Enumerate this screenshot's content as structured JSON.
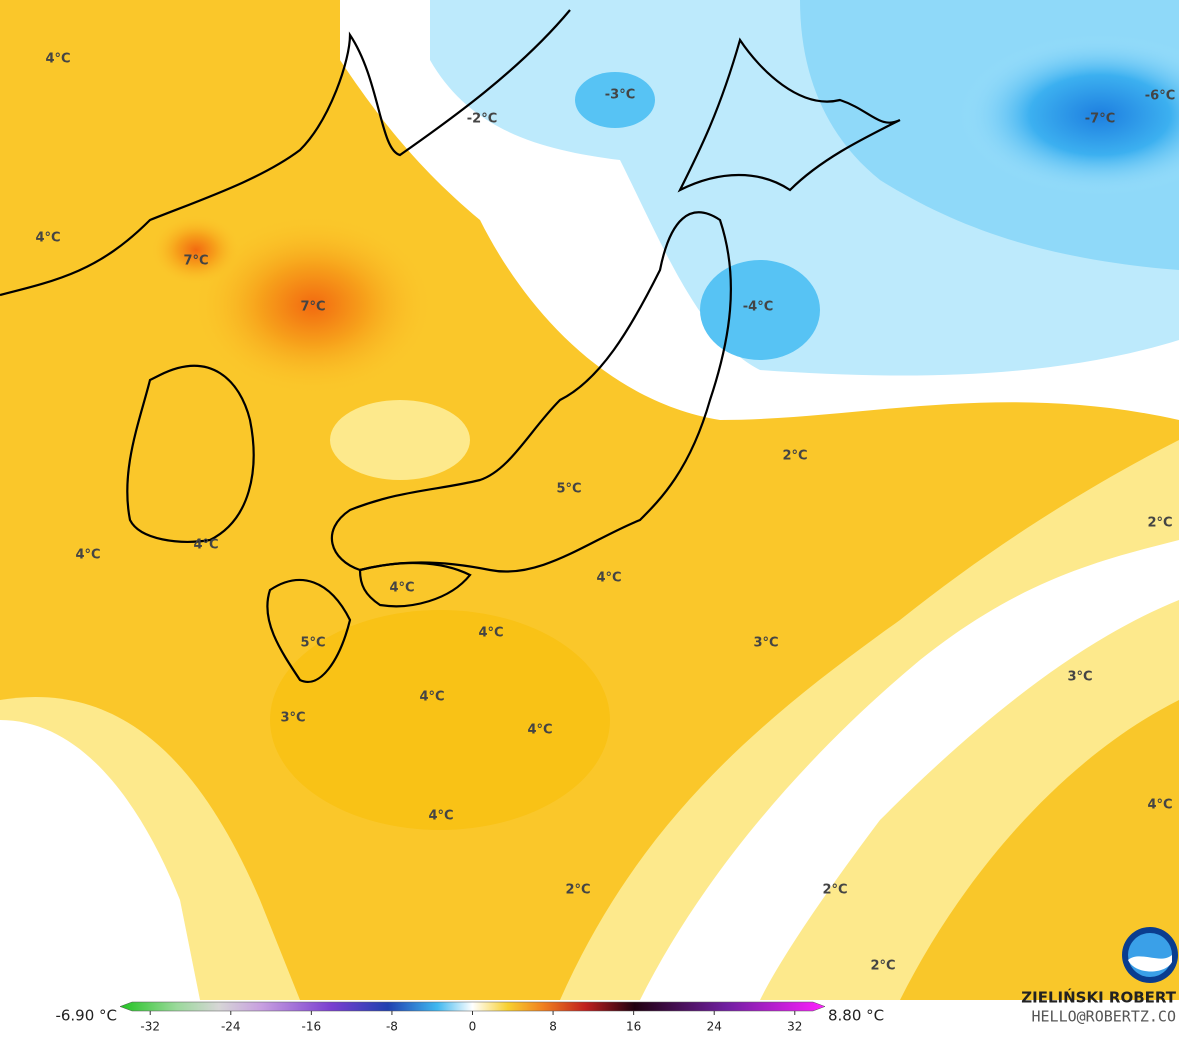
{
  "map_labels": [
    "4°C",
    "4°C",
    "7°C",
    "7°C",
    "-2°C",
    "-3°C",
    "-7°C",
    "-6°C",
    "-4°C",
    "2°C",
    "2°C",
    "5°C",
    "4°C",
    "4°C",
    "4°C",
    "4°C",
    "4°C",
    "5°C",
    "3°C",
    "3°C",
    "4°C",
    "3°C",
    "4°C",
    "4°C",
    "4°C",
    "2°C",
    "2°C",
    "2°C"
  ],
  "colorbar": {
    "min_label": "-6.90 °C",
    "max_label": "8.80 °C",
    "range": [
      -35,
      35
    ],
    "ticks": [
      -32,
      -24,
      -16,
      -8,
      0,
      8,
      16,
      24,
      32
    ]
  },
  "credit": {
    "name": "ZIELIŃSKI ROBERT",
    "contact": "HELLO@ROBERTZ.CO"
  }
}
